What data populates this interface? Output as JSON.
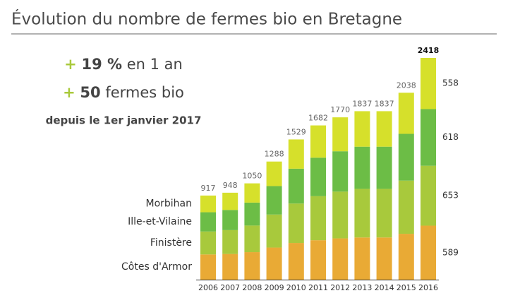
{
  "chart_data": {
    "type": "stacked-bar",
    "title": "Évolution du nombre de fermes bio en Bretagne",
    "annotations": [
      {
        "sign": "+",
        "bold": "19 %",
        "rest": "en 1 an"
      },
      {
        "sign": "+",
        "bold": "50",
        "rest": "fermes bio"
      },
      {
        "text": "depuis le 1er janvier 2017"
      }
    ],
    "categories": [
      "2006",
      "2007",
      "2008",
      "2009",
      "2010",
      "2011",
      "2012",
      "2013",
      "2014",
      "2015",
      "2016"
    ],
    "series": [
      {
        "name": "Côtes d'Armor",
        "color": "#e9aa35",
        "values": [
          275,
          280,
          300,
          350,
          400,
          430,
          450,
          460,
          460,
          500,
          589
        ]
      },
      {
        "name": "Finistère",
        "color": "#a8c93c",
        "values": [
          250,
          260,
          290,
          360,
          430,
          480,
          510,
          530,
          530,
          580,
          653
        ]
      },
      {
        "name": "Ille-et-Vilaine",
        "color": "#6cbd46",
        "values": [
          210,
          220,
          250,
          310,
          380,
          420,
          440,
          460,
          460,
          510,
          618
        ]
      },
      {
        "name": "Morbihan",
        "color": "#d6e02b",
        "values": [
          182,
          188,
          210,
          268,
          319,
          352,
          370,
          387,
          387,
          448,
          558
        ]
      }
    ],
    "totals": [
      917,
      948,
      1050,
      1288,
      1529,
      1682,
      1770,
      1837,
      1837,
      2038,
      2418
    ]
  }
}
